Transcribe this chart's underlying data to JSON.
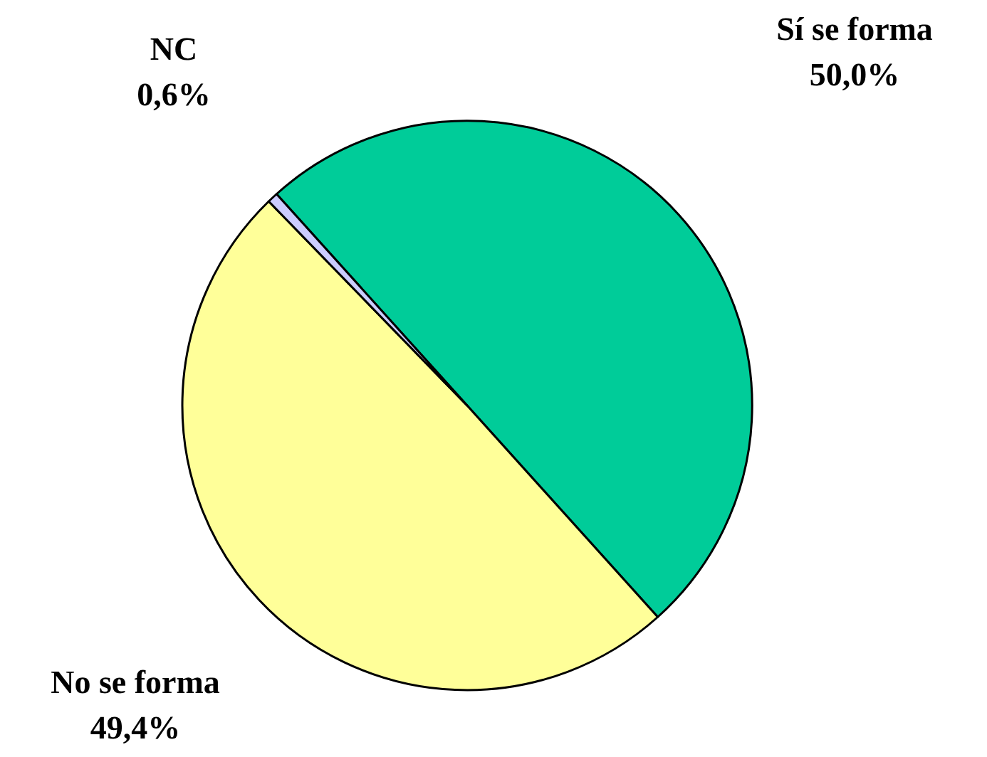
{
  "chart_data": {
    "type": "pie",
    "categories": [
      "Sí se forma",
      "No se forma",
      "NC"
    ],
    "values": [
      50.0,
      49.4,
      0.6
    ],
    "colors": [
      "#00cc99",
      "#ffff99",
      "#ccccff"
    ],
    "value_labels": [
      "50,0%",
      "49,4%",
      "0,6%"
    ]
  }
}
